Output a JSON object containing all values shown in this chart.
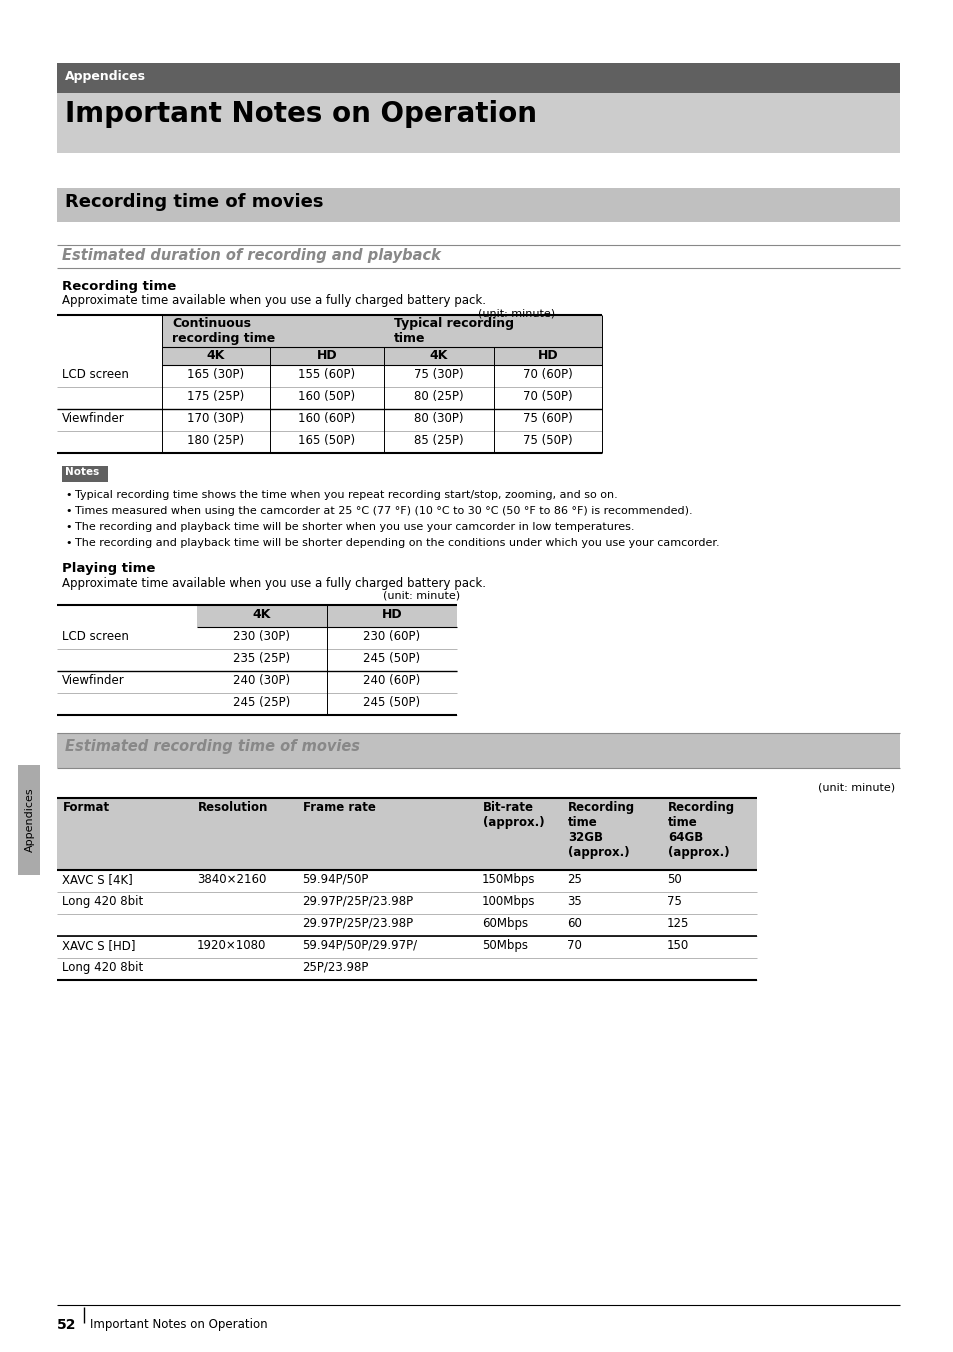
{
  "page_bg": "#ffffff",
  "header_dark_bg": "#606060",
  "header_light_bg": "#cccccc",
  "section_bg": "#c0c0c0",
  "notes_bg": "#606060",
  "table_header_bg": "#c8c8c8",
  "sidebar_bg": "#aaaaaa",
  "appendices_label": "Appendices",
  "main_title": "Important Notes on Operation",
  "section_title": "Recording time of movies",
  "subsection1_title": "Estimated duration of recording and playback",
  "subsection2_title": "Estimated recording time of movies",
  "recording_time_label": "Recording time",
  "recording_time_desc": "Approximate time available when you use a fully charged battery pack.",
  "unit_minute": "(unit: minute)",
  "rec_table_sub_headers": [
    "4K",
    "HD",
    "4K",
    "HD"
  ],
  "rec_table_data": [
    [
      "LCD screen",
      "165 (30P)",
      "155 (60P)",
      "75 (30P)",
      "70 (60P)"
    ],
    [
      "",
      "175 (25P)",
      "160 (50P)",
      "80 (25P)",
      "70 (50P)"
    ],
    [
      "Viewfinder",
      "170 (30P)",
      "160 (60P)",
      "80 (30P)",
      "75 (60P)"
    ],
    [
      "",
      "180 (25P)",
      "165 (50P)",
      "85 (25P)",
      "75 (50P)"
    ]
  ],
  "notes_bullets": [
    "Typical recording time shows the time when you repeat recording start/stop, zooming, and so on.",
    "Times measured when using the camcorder at 25 °C (77 °F) (10 °C to 30 °C (50 °F to 86 °F) is recommended).",
    "The recording and playback time will be shorter when you use your camcorder in low temperatures.",
    "The recording and playback time will be shorter depending on the conditions under which you use your camcorder."
  ],
  "playing_time_label": "Playing time",
  "playing_time_desc": "Approximate time available when you use a fully charged battery pack.",
  "play_table_data": [
    [
      "LCD screen",
      "230 (30P)",
      "230 (60P)"
    ],
    [
      "",
      "235 (25P)",
      "245 (50P)"
    ],
    [
      "Viewfinder",
      "240 (30P)",
      "240 (60P)"
    ],
    [
      "",
      "245 (25P)",
      "245 (50P)"
    ]
  ],
  "est_table_headers": [
    "Format",
    "Resolution",
    "Frame rate",
    "Bit-rate\n(approx.)",
    "Recording\ntime\n32GB\n(approx.)",
    "Recording\ntime\n64GB\n(approx.)"
  ],
  "est_table_data": [
    [
      "XAVC S [4K]",
      "3840×2160",
      "59.94P/50P",
      "150Mbps",
      "25",
      "50"
    ],
    [
      "Long 420 8bit",
      "",
      "29.97P/25P/23.98P",
      "100Mbps",
      "35",
      "75"
    ],
    [
      "",
      "",
      "29.97P/25P/23.98P",
      "60Mbps",
      "60",
      "125"
    ],
    [
      "XAVC S [HD]",
      "1920×1080",
      "59.94P/50P/29.97P/",
      "50Mbps",
      "70",
      "150"
    ],
    [
      "Long 420 8bit",
      "",
      "25P/23.98P",
      "",
      "",
      ""
    ]
  ],
  "footer_page": "52",
  "footer_text": "Important Notes on Operation",
  "sidebar_text": "Appendices"
}
